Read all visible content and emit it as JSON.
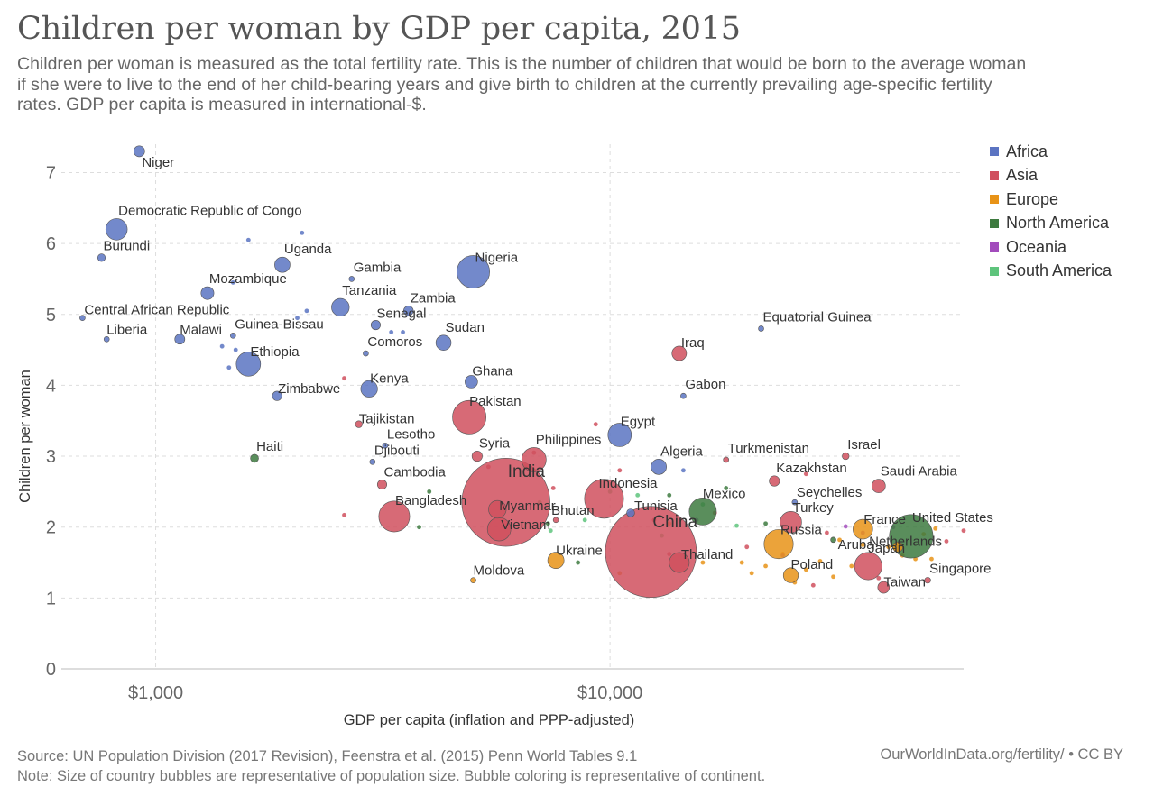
{
  "header": {
    "title": "Children per woman by GDP per capita, 2015",
    "subtitle": "Children per woman is measured as the total fertility rate. This is the number of children that would be born to the average woman if she were to live to the end of her child-bearing years and give birth to children at the currently prevailing age-specific fertility rates. GDP per capita is measured in international-$."
  },
  "footer": {
    "source": "Source: UN Population Division (2017 Revision), Feenstra et al. (2015) Penn World Tables 9.1",
    "note": "Note: Size of country bubbles are representative of population size. Bubble coloring is representative of continent.",
    "credit": "OurWorldInData.org/fertility/ • CC BY"
  },
  "chart_data": {
    "type": "scatter",
    "title": "Children per woman by GDP per capita, 2015",
    "xlabel": "GDP per capita (inflation and PPP-adjusted)",
    "ylabel": "Children per woman",
    "x_scale": "log",
    "xlim": [
      620,
      60000
    ],
    "ylim": [
      0,
      7.4
    ],
    "x_ticks": [
      {
        "value": 1000,
        "label": "$1,000"
      },
      {
        "value": 10000,
        "label": "$10,000"
      }
    ],
    "y_ticks": [
      0,
      1,
      2,
      3,
      4,
      5,
      6,
      7
    ],
    "grid": true,
    "legend_position": "right",
    "legend": [
      {
        "name": "Africa",
        "color": "#5b74c2"
      },
      {
        "name": "Asia",
        "color": "#d0505e"
      },
      {
        "name": "Europe",
        "color": "#e89317"
      },
      {
        "name": "North America",
        "color": "#3d7a3f"
      },
      {
        "name": "Oceania",
        "color": "#a24cbc"
      },
      {
        "name": "South America",
        "color": "#5ec47c"
      }
    ],
    "points": [
      {
        "label": "Niger",
        "x": 920,
        "y": 7.3,
        "group": "Africa",
        "pop": 20
      },
      {
        "label": "Democratic Republic of Congo",
        "x": 820,
        "y": 6.2,
        "group": "Africa",
        "pop": 78
      },
      {
        "label": "Burundi",
        "x": 760,
        "y": 5.8,
        "group": "Africa",
        "pop": 10
      },
      {
        "label": "Uganda",
        "x": 1900,
        "y": 5.7,
        "group": "Africa",
        "pop": 40
      },
      {
        "label": "Mozambique",
        "x": 1300,
        "y": 5.3,
        "group": "Africa",
        "pop": 28
      },
      {
        "label": "Gambia",
        "x": 2700,
        "y": 5.5,
        "group": "Africa",
        "pop": 2
      },
      {
        "label": "Nigeria",
        "x": 5000,
        "y": 5.6,
        "group": "Africa",
        "pop": 180
      },
      {
        "label": "Central African Republic",
        "x": 690,
        "y": 4.95,
        "group": "Africa",
        "pop": 4
      },
      {
        "label": "Tanzania",
        "x": 2550,
        "y": 5.1,
        "group": "Africa",
        "pop": 53
      },
      {
        "label": "Zambia",
        "x": 3600,
        "y": 5.05,
        "group": "Africa",
        "pop": 16
      },
      {
        "label": "Senegal",
        "x": 3050,
        "y": 4.85,
        "group": "Africa",
        "pop": 15
      },
      {
        "label": "Liberia",
        "x": 780,
        "y": 4.65,
        "group": "Africa",
        "pop": 4
      },
      {
        "label": "Malawi",
        "x": 1130,
        "y": 4.65,
        "group": "Africa",
        "pop": 17
      },
      {
        "label": "Guinea-Bissau",
        "x": 1480,
        "y": 4.7,
        "group": "Africa",
        "pop": 2
      },
      {
        "label": "Sudan",
        "x": 4300,
        "y": 4.6,
        "group": "Africa",
        "pop": 39
      },
      {
        "label": "Comoros",
        "x": 2900,
        "y": 4.45,
        "group": "Africa",
        "pop": 1
      },
      {
        "label": "Ethiopia",
        "x": 1600,
        "y": 4.3,
        "group": "Africa",
        "pop": 100
      },
      {
        "label": "Kenya",
        "x": 2950,
        "y": 3.95,
        "group": "Africa",
        "pop": 47
      },
      {
        "label": "Ghana",
        "x": 4950,
        "y": 4.05,
        "group": "Africa",
        "pop": 27
      },
      {
        "label": "Zimbabwe",
        "x": 1850,
        "y": 3.85,
        "group": "Africa",
        "pop": 15
      },
      {
        "label": "Gabon",
        "x": 14500,
        "y": 3.85,
        "group": "Africa",
        "pop": 2
      },
      {
        "label": "Lesotho",
        "x": 3200,
        "y": 3.15,
        "group": "Africa",
        "pop": 2
      },
      {
        "label": "Egypt",
        "x": 10500,
        "y": 3.3,
        "group": "Africa",
        "pop": 93
      },
      {
        "label": "Haiti",
        "x": 1650,
        "y": 2.97,
        "group": "North America",
        "pop": 11
      },
      {
        "label": "Djibouti",
        "x": 3000,
        "y": 2.92,
        "group": "Africa",
        "pop": 1
      },
      {
        "label": "Algeria",
        "x": 12800,
        "y": 2.85,
        "group": "Africa",
        "pop": 40
      },
      {
        "label": "Equatorial Guinea",
        "x": 21500,
        "y": 4.8,
        "group": "Africa",
        "pop": 1
      },
      {
        "label": "Seychelles",
        "x": 25500,
        "y": 2.35,
        "group": "Africa",
        "pop": 1
      },
      {
        "label": "Tunisia",
        "x": 11100,
        "y": 2.2,
        "group": "Africa",
        "pop": 11
      },
      {
        "label": "Iraq",
        "x": 14200,
        "y": 4.45,
        "group": "Asia",
        "pop": 36
      },
      {
        "label": "Tajikistan",
        "x": 2800,
        "y": 3.45,
        "group": "Asia",
        "pop": 8
      },
      {
        "label": "Pakistan",
        "x": 4900,
        "y": 3.55,
        "group": "Asia",
        "pop": 190
      },
      {
        "label": "Syria",
        "x": 5100,
        "y": 3.0,
        "group": "Asia",
        "pop": 18
      },
      {
        "label": "Philippines",
        "x": 6800,
        "y": 2.95,
        "group": "Asia",
        "pop": 101
      },
      {
        "label": "India",
        "x": 5900,
        "y": 2.35,
        "group": "Asia",
        "pop": 1310
      },
      {
        "label": "Cambodia",
        "x": 3150,
        "y": 2.6,
        "group": "Asia",
        "pop": 15
      },
      {
        "label": "Bangladesh",
        "x": 3350,
        "y": 2.15,
        "group": "Asia",
        "pop": 161
      },
      {
        "label": "Myanmar",
        "x": 5650,
        "y": 2.25,
        "group": "Asia",
        "pop": 53
      },
      {
        "label": "Vietnam",
        "x": 5700,
        "y": 1.97,
        "group": "Asia",
        "pop": 93
      },
      {
        "label": "Bhutan",
        "x": 7600,
        "y": 2.1,
        "group": "Asia",
        "pop": 1
      },
      {
        "label": "Indonesia",
        "x": 9700,
        "y": 2.4,
        "group": "Asia",
        "pop": 258
      },
      {
        "label": "China",
        "x": 12300,
        "y": 1.65,
        "group": "Asia",
        "pop": 1400
      },
      {
        "label": "Thailand",
        "x": 14200,
        "y": 1.5,
        "group": "Asia",
        "pop": 68
      },
      {
        "label": "Turkmenistan",
        "x": 18000,
        "y": 2.95,
        "group": "Asia",
        "pop": 5
      },
      {
        "label": "Kazakhstan",
        "x": 23000,
        "y": 2.65,
        "group": "Asia",
        "pop": 18
      },
      {
        "label": "Turkey",
        "x": 25000,
        "y": 2.07,
        "group": "Asia",
        "pop": 78
      },
      {
        "label": "Israel",
        "x": 33000,
        "y": 3.0,
        "group": "Asia",
        "pop": 8
      },
      {
        "label": "Saudi Arabia",
        "x": 39000,
        "y": 2.58,
        "group": "Asia",
        "pop": 31
      },
      {
        "label": "Japan",
        "x": 37000,
        "y": 1.45,
        "group": "Asia",
        "pop": 127
      },
      {
        "label": "Taiwan",
        "x": 40000,
        "y": 1.15,
        "group": "Asia",
        "pop": 23
      },
      {
        "label": "Singapore",
        "x": 50000,
        "y": 1.25,
        "group": "Asia",
        "pop": 6
      },
      {
        "label": "Ukraine",
        "x": 7600,
        "y": 1.53,
        "group": "Europe",
        "pop": 45
      },
      {
        "label": "Moldova",
        "x": 5000,
        "y": 1.25,
        "group": "Europe",
        "pop": 4
      },
      {
        "label": "Russia",
        "x": 23500,
        "y": 1.76,
        "group": "Europe",
        "pop": 144
      },
      {
        "label": "Poland",
        "x": 25000,
        "y": 1.32,
        "group": "Europe",
        "pop": 38
      },
      {
        "label": "France",
        "x": 36000,
        "y": 1.97,
        "group": "Europe",
        "pop": 66
      },
      {
        "label": "Netherlands",
        "x": 43000,
        "y": 1.72,
        "group": "Europe",
        "pop": 17
      },
      {
        "label": "Aruba",
        "x": 31000,
        "y": 1.82,
        "group": "North America",
        "pop": 1
      },
      {
        "label": "Mexico",
        "x": 16000,
        "y": 2.22,
        "group": "North America",
        "pop": 125
      },
      {
        "label": "United States",
        "x": 46000,
        "y": 1.87,
        "group": "North America",
        "pop": 320
      }
    ]
  }
}
